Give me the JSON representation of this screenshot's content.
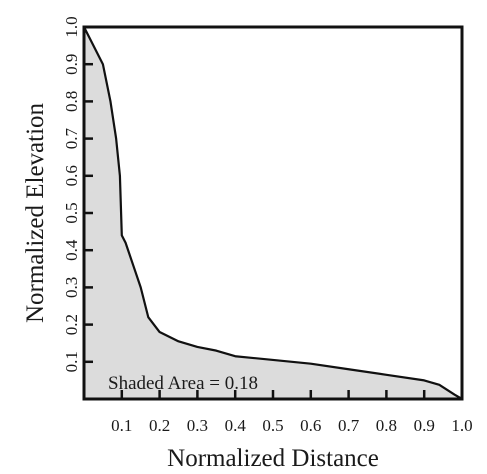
{
  "chart_data": {
    "type": "area",
    "xlabel": "Normalized Distance",
    "ylabel": "Normalized Elevation",
    "xlim": [
      0,
      1
    ],
    "ylim": [
      0,
      1
    ],
    "x_ticks": [
      "0.1",
      "0.2",
      "0.3",
      "0.4",
      "0.5",
      "0.6",
      "0.7",
      "0.8",
      "0.9",
      "1.0"
    ],
    "y_ticks": [
      "0.1",
      "0.2",
      "0.3",
      "0.4",
      "0.5",
      "0.6",
      "0.7",
      "0.8",
      "0.9",
      "1.0"
    ],
    "annotation": "Shaded Area = 0.18",
    "grid": false,
    "colors": {
      "fill": "#dcdcdc",
      "line": "#111111",
      "frame": "#111111"
    },
    "series": [
      {
        "x": [
          0.0,
          0.02,
          0.05,
          0.07,
          0.085,
          0.095,
          0.1,
          0.11,
          0.13,
          0.15,
          0.17,
          0.2,
          0.25,
          0.3,
          0.35,
          0.4,
          0.5,
          0.6,
          0.7,
          0.8,
          0.9,
          0.94,
          0.98,
          1.0
        ],
        "y": [
          1.0,
          0.96,
          0.9,
          0.8,
          0.7,
          0.6,
          0.44,
          0.42,
          0.36,
          0.3,
          0.22,
          0.18,
          0.155,
          0.14,
          0.13,
          0.115,
          0.105,
          0.095,
          0.08,
          0.065,
          0.05,
          0.038,
          0.012,
          0.0
        ]
      }
    ]
  }
}
